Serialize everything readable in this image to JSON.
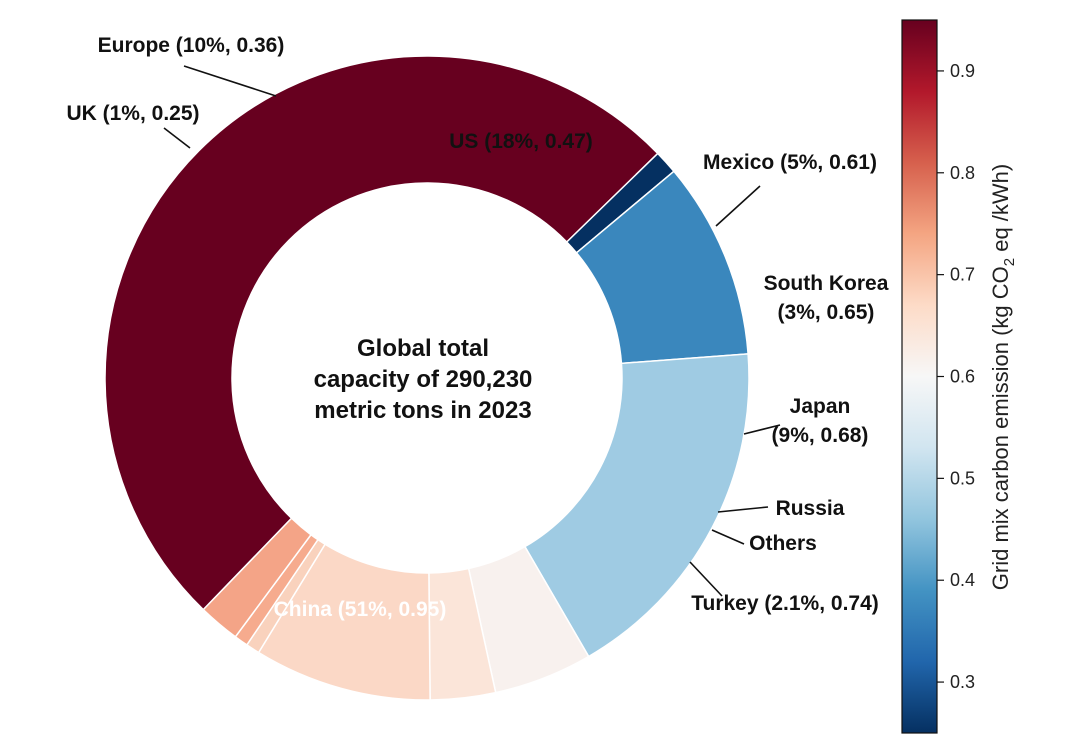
{
  "chart_data": {
    "type": "pie",
    "donut": true,
    "center_text": [
      "Global total",
      "capacity of 290,230",
      "metric tons in 2023"
    ],
    "slices": [
      {
        "label": "China (51%, 0.95)",
        "share": 51,
        "emission": 0.95,
        "color": "#67001f"
      },
      {
        "label": "UK (1%, 0.25)",
        "share": 1.2,
        "emission": 0.25,
        "color": "#053061"
      },
      {
        "label": "Europe (10%, 0.36)",
        "share": 10,
        "emission": 0.36,
        "color": "#3a87bd"
      },
      {
        "label": "US (18%, 0.47)",
        "share": 18,
        "emission": 0.47,
        "color": "#9fcbe3"
      },
      {
        "label": "Mexico (5%, 0.61)",
        "share": 5,
        "emission": 0.61,
        "color": "#f8f1ee"
      },
      {
        "label": "South Korea\n(3%, 0.65)",
        "share": 3.3,
        "emission": 0.65,
        "color": "#fbe5d9"
      },
      {
        "label": "Japan\n(9%, 0.68)",
        "share": 9,
        "emission": 0.68,
        "color": "#fbd8c6"
      },
      {
        "label": "Russia",
        "share": 0.7,
        "emission": 0.69,
        "color": "#f9d2bd"
      },
      {
        "label": "Others",
        "share": 0.7,
        "emission": 0.73,
        "color": "#f6ab8e"
      },
      {
        "label": "Turkey (2.1%, 0.74)",
        "share": 2.1,
        "emission": 0.74,
        "color": "#f4a487"
      }
    ],
    "colorbar": {
      "title_parts": [
        "Grid mix carbon emission (kg CO",
        "2",
        " eq /kWh)"
      ],
      "vmin": 0.25,
      "vmax": 0.95,
      "ticks": [
        "0.3",
        "0.4",
        "0.5",
        "0.6",
        "0.7",
        "0.8",
        "0.9"
      ],
      "tick_values": [
        0.3,
        0.4,
        0.5,
        0.6,
        0.7,
        0.8,
        0.9
      ],
      "colormap": "RdBu_r",
      "stops": [
        "#053061",
        "#2166ac",
        "#4393c3",
        "#92c5de",
        "#d1e5f0",
        "#f7f7f7",
        "#fddbc7",
        "#f4a582",
        "#d6604d",
        "#b2182b",
        "#67001f"
      ]
    }
  }
}
